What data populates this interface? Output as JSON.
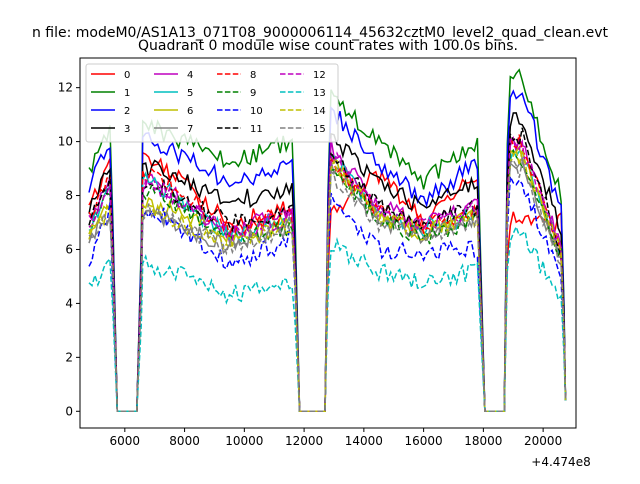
{
  "figure": {
    "suptitle": "n file: modeM0/AS1A13_071T08_9000006114_45632cztM0_level2_quad_clean.evt"
  },
  "chart_data": {
    "type": "line",
    "title": "Quadrant 0 module wise count rates with 100.0s bins.",
    "xlabel": "",
    "ylabel": "",
    "x_offset_label": "+4.474e8",
    "xlim": [
      4500,
      21100
    ],
    "ylim": [
      -0.62,
      13.1
    ],
    "xticks": [
      6000,
      8000,
      10000,
      12000,
      14000,
      16000,
      18000,
      20000
    ],
    "yticks": [
      0,
      2,
      4,
      6,
      8,
      10,
      12
    ],
    "grid": false,
    "legend": {
      "placement": "upper-left",
      "columns": 4
    },
    "time_segments": [
      {
        "x": [
          4800,
          5500
        ],
        "gap_after": [
          5800,
          6400
        ]
      },
      {
        "x": [
          6600,
          11600
        ],
        "gap_after": [
          11900,
          12700
        ]
      },
      {
        "x": [
          12900,
          17800
        ],
        "gap_after": [
          18100,
          18700
        ]
      },
      {
        "x": [
          18900,
          20600
        ]
      }
    ],
    "series": [
      {
        "name": "0",
        "color": "#ff0000",
        "dash": "solid",
        "levels": [
          7.5,
          9.3,
          7.0,
          7.5,
          7.4,
          8.8,
          7.0,
          7.1
        ]
      },
      {
        "name": "1",
        "color": "#008000",
        "dash": "solid",
        "levels": [
          8.8,
          10.5,
          9.2,
          10.0,
          11.7,
          10.0,
          8.5,
          12.4
        ]
      },
      {
        "name": "2",
        "color": "#0000ff",
        "dash": "solid",
        "levels": [
          8.3,
          10.0,
          8.5,
          9.0,
          11.2,
          9.2,
          7.8,
          11.8
        ]
      },
      {
        "name": "3",
        "color": "#000000",
        "dash": "solid",
        "levels": [
          7.5,
          9.0,
          7.8,
          8.2,
          10.2,
          8.5,
          7.5,
          10.8
        ]
      },
      {
        "name": "4",
        "color": "#bf00bf",
        "dash": "solid",
        "levels": [
          7.0,
          8.5,
          6.6,
          7.5,
          9.8,
          7.6,
          7.0,
          9.8
        ]
      },
      {
        "name": "5",
        "color": "#00bfbf",
        "dash": "solid",
        "levels": [
          6.6,
          8.5,
          6.5,
          7.2,
          9.5,
          7.3,
          6.8,
          9.6
        ]
      },
      {
        "name": "6",
        "color": "#bfbf00",
        "dash": "solid",
        "levels": [
          6.6,
          7.7,
          6.4,
          7.1,
          9.4,
          7.3,
          6.6,
          9.6
        ]
      },
      {
        "name": "7",
        "color": "#808080",
        "dash": "solid",
        "levels": [
          6.4,
          7.3,
          6.1,
          7.0,
          9.0,
          7.1,
          6.5,
          9.2
        ]
      },
      {
        "name": "8",
        "color": "#ff0000",
        "dash": "dashed",
        "levels": [
          7.2,
          8.8,
          6.8,
          7.3,
          9.2,
          7.4,
          6.9,
          10.0
        ]
      },
      {
        "name": "9",
        "color": "#008000",
        "dash": "dashed",
        "levels": [
          6.6,
          8.2,
          6.3,
          6.8,
          9.0,
          7.2,
          6.4,
          9.4
        ]
      },
      {
        "name": "10",
        "color": "#0000ff",
        "dash": "dashed",
        "levels": [
          5.5,
          7.5,
          5.4,
          6.4,
          8.0,
          6.0,
          5.9,
          8.4
        ]
      },
      {
        "name": "11",
        "color": "#000000",
        "dash": "dashed",
        "levels": [
          7.0,
          8.5,
          7.0,
          7.4,
          9.5,
          7.6,
          6.9,
          10.2
        ]
      },
      {
        "name": "12",
        "color": "#bf00bf",
        "dash": "dashed",
        "levels": [
          6.9,
          8.4,
          6.6,
          7.2,
          9.6,
          7.5,
          6.9,
          9.8
        ]
      },
      {
        "name": "13",
        "color": "#00bfbf",
        "dash": "dashed",
        "levels": [
          4.6,
          5.4,
          4.3,
          4.7,
          6.2,
          5.2,
          4.8,
          6.5
        ]
      },
      {
        "name": "14",
        "color": "#bfbf00",
        "dash": "dashed",
        "levels": [
          6.5,
          7.5,
          6.2,
          6.9,
          9.2,
          7.2,
          6.6,
          9.4
        ]
      },
      {
        "name": "15",
        "color": "#808080",
        "dash": "dashed",
        "levels": [
          6.3,
          7.4,
          6.0,
          6.8,
          8.8,
          7.0,
          6.4,
          9.0
        ]
      }
    ]
  }
}
